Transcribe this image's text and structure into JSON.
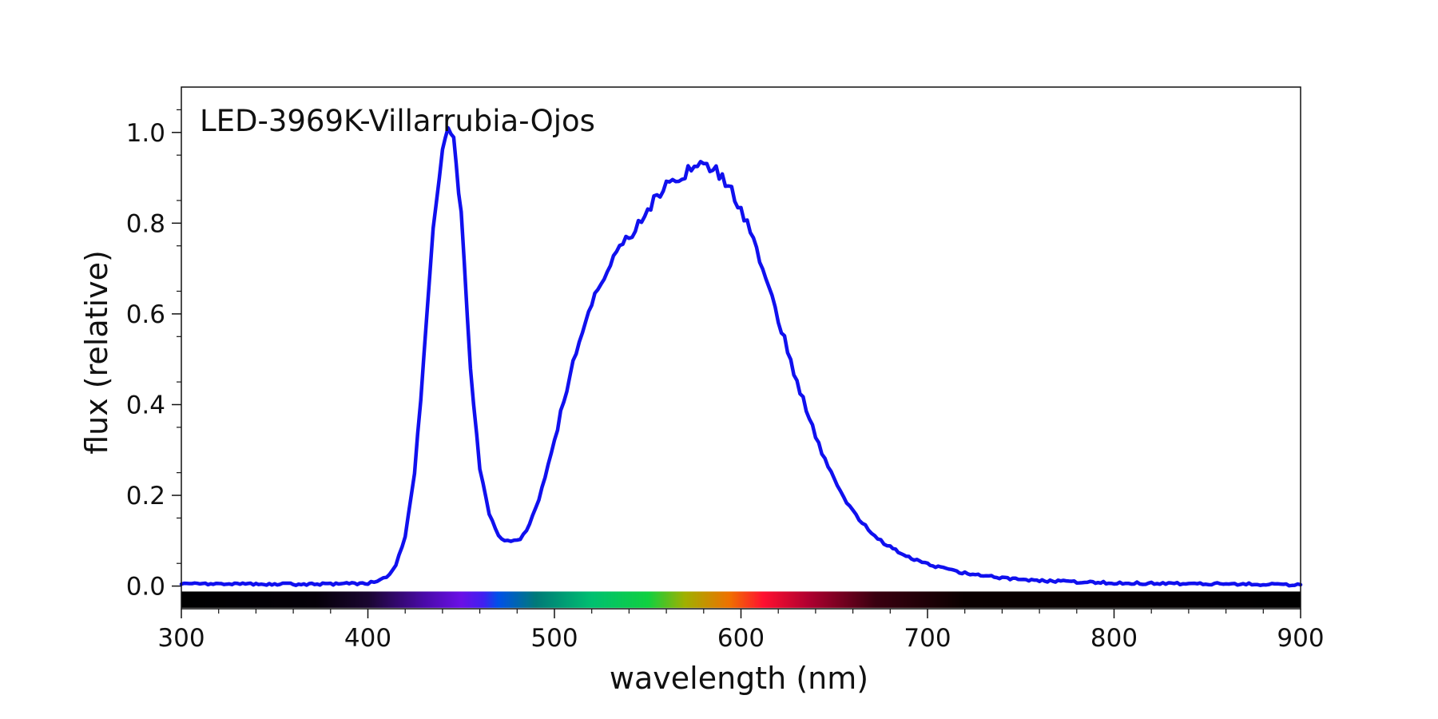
{
  "chart_data": {
    "type": "line",
    "title": "LED-3969K-Villarrubia-Ojos",
    "xlabel": "wavelength (nm)",
    "ylabel": "flux (relative)",
    "xlim": [
      300,
      900
    ],
    "ylim": [
      -0.05,
      1.1
    ],
    "x_ticks": [
      "300",
      "400",
      "500",
      "600",
      "700",
      "800",
      "900"
    ],
    "y_ticks": [
      "0.0",
      "0.2",
      "0.4",
      "0.6",
      "0.8",
      "1.0"
    ],
    "grid": false,
    "legend": "none",
    "spectrum_bar": true,
    "line_color": "#1010ee",
    "series": [
      {
        "x": [
          300,
          310,
          320,
          330,
          340,
          350,
          360,
          370,
          380,
          390,
          400,
          405,
          410,
          415,
          420,
          425,
          430,
          435,
          440,
          443,
          446,
          450,
          455,
          460,
          465,
          470,
          475,
          480,
          485,
          490,
          495,
          500,
          505,
          510,
          515,
          520,
          525,
          530,
          535,
          540,
          545,
          550,
          555,
          560,
          565,
          570,
          575,
          580,
          585,
          590,
          595,
          600,
          605,
          610,
          615,
          620,
          625,
          630,
          635,
          640,
          645,
          650,
          655,
          660,
          665,
          670,
          675,
          680,
          690,
          700,
          710,
          720,
          730,
          740,
          750,
          760,
          770,
          780,
          790,
          800,
          820,
          840,
          860,
          880,
          900
        ],
        "y": [
          0.006,
          0.005,
          0.004,
          0.004,
          0.004,
          0.004,
          0.004,
          0.004,
          0.004,
          0.005,
          0.006,
          0.01,
          0.02,
          0.045,
          0.11,
          0.25,
          0.5,
          0.8,
          0.97,
          1.0,
          0.98,
          0.82,
          0.48,
          0.26,
          0.16,
          0.11,
          0.098,
          0.1,
          0.12,
          0.17,
          0.24,
          0.32,
          0.41,
          0.49,
          0.56,
          0.62,
          0.67,
          0.71,
          0.74,
          0.77,
          0.8,
          0.83,
          0.86,
          0.88,
          0.9,
          0.91,
          0.925,
          0.935,
          0.92,
          0.9,
          0.87,
          0.83,
          0.78,
          0.72,
          0.66,
          0.59,
          0.52,
          0.45,
          0.39,
          0.33,
          0.28,
          0.235,
          0.195,
          0.165,
          0.14,
          0.118,
          0.1,
          0.085,
          0.065,
          0.048,
          0.037,
          0.029,
          0.023,
          0.018,
          0.015,
          0.012,
          0.011,
          0.009,
          0.008,
          0.007,
          0.006,
          0.005,
          0.005,
          0.004,
          0.003
        ]
      }
    ]
  }
}
